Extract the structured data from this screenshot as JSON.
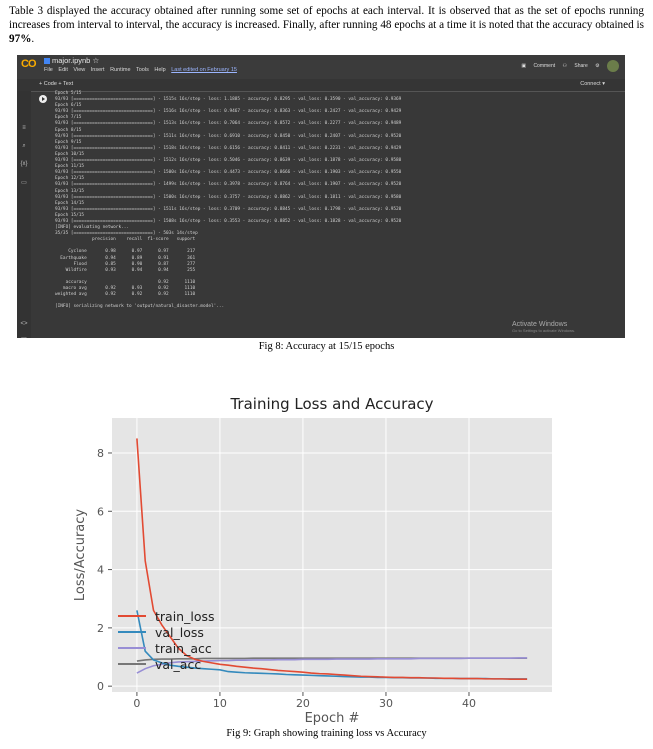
{
  "paragraph": {
    "text_before": "Table 3 displayed the accuracy obtained after running some set of epochs at each interval. It is observed that as the set of epochs running increases from interval to interval, the accuracy is increased. Finally, after running 48 epochs at a time it is noted that the accuracy obtained is ",
    "bold_value": "97%",
    "text_after": "."
  },
  "colab": {
    "logo": "CO",
    "file_name": "major.ipynb",
    "star": "☆",
    "menus": [
      "File",
      "Edit",
      "View",
      "Insert",
      "Runtime",
      "Tools",
      "Help"
    ],
    "last_edited": "Last edited on February 15",
    "comment": "Comment",
    "share": "Share",
    "toolbar_left": "+ Code  + Text",
    "toolbar_right": "Connect ▾",
    "watermark_title": "Activate Windows",
    "watermark_sub": "Go to Settings to activate Windows.",
    "output_lines": [
      "Epoch 5/15",
      "93/93 [==============================] - 1515s 16s/step - loss: 1.1885 - accuracy: 0.8295 - val_loss: 0.3590 - val_accuracy: 0.9369",
      "Epoch 6/15",
      "93/93 [==============================] - 1516s 16s/step - loss: 0.9467 - accuracy: 0.8363 - val_loss: 0.2427 - val_accuracy: 0.9429",
      "Epoch 7/15",
      "93/93 [==============================] - 1513s 16s/step - loss: 0.7064 - accuracy: 0.8572 - val_loss: 0.2277 - val_accuracy: 0.9489",
      "Epoch 8/15",
      "93/93 [==============================] - 1511s 16s/step - loss: 0.6910 - accuracy: 0.8450 - val_loss: 0.2407 - val_accuracy: 0.9520",
      "Epoch 9/15",
      "93/93 [==============================] - 1518s 16s/step - loss: 0.6156 - accuracy: 0.8411 - val_loss: 0.2231 - val_accuracy: 0.9429",
      "Epoch 10/15",
      "93/93 [==============================] - 1512s 16s/step - loss: 0.5046 - accuracy: 0.8639 - val_loss: 0.1878 - val_accuracy: 0.9580",
      "Epoch 11/15",
      "93/93 [==============================] - 1500s 16s/step - loss: 0.4473 - accuracy: 0.8666 - val_loss: 0.1903 - val_accuracy: 0.9550",
      "Epoch 12/15",
      "93/93 [==============================] - 1499s 16s/step - loss: 0.3978 - accuracy: 0.8764 - val_loss: 0.1907 - val_accuracy: 0.9520",
      "Epoch 13/15",
      "93/93 [==============================] - 1500s 16s/step - loss: 0.3757 - accuracy: 0.8862 - val_loss: 0.1811 - val_accuracy: 0.9580",
      "Epoch 14/15",
      "93/93 [==============================] - 1511s 16s/step - loss: 0.3709 - accuracy: 0.8845 - val_loss: 0.1798 - val_accuracy: 0.9520",
      "Epoch 15/15",
      "93/93 [==============================] - 1508s 16s/step - loss: 0.3553 - accuracy: 0.8852 - val_loss: 0.1828 - val_accuracy: 0.9520",
      "[INFO] evaluating network...",
      "35/35 [==============================] - 503s 14s/step",
      "              precision    recall  f1-score   support",
      "",
      "     Cyclone       0.98      0.97      0.97       217",
      "  Earthquake       0.94      0.89      0.91       361",
      "       Flood       0.85      0.90      0.87       277",
      "    Wildfire       0.93      0.94      0.94       255",
      "",
      "    accuracy                           0.92      1110",
      "   macro avg       0.92      0.93      0.92      1110",
      "weighted avg       0.92      0.92      0.92      1110",
      "",
      "[INFO] serializing network to 'output/natural_disaster.model'..."
    ]
  },
  "fig8_caption": "Fig 8: Accuracy at 15/15 epochs",
  "fig9_caption": "Fig 9: Graph showing training loss vs Accuracy",
  "colors": {
    "train_loss": "#e24a33",
    "val_loss": "#348abd",
    "train_acc": "#988ed5",
    "val_acc": "#777777",
    "plot_bg": "#e5e5e5"
  },
  "chart_data": {
    "type": "line",
    "title": "Training Loss and Accuracy",
    "xlabel": "Epoch #",
    "ylabel": "Loss/Accuracy",
    "xlim": [
      -3,
      50
    ],
    "ylim": [
      -0.2,
      9.2
    ],
    "xticks": [
      0,
      10,
      20,
      30,
      40
    ],
    "yticks": [
      0,
      2,
      4,
      6,
      8
    ],
    "grid": true,
    "legend_position": "lower-left",
    "x": [
      0,
      1,
      2,
      3,
      4,
      5,
      6,
      7,
      8,
      9,
      10,
      11,
      12,
      13,
      14,
      15,
      16,
      17,
      18,
      19,
      20,
      21,
      22,
      23,
      24,
      25,
      26,
      27,
      28,
      29,
      30,
      31,
      32,
      33,
      34,
      35,
      36,
      37,
      38,
      39,
      40,
      41,
      42,
      43,
      44,
      45,
      46,
      47
    ],
    "series": [
      {
        "name": "train_loss",
        "values": [
          8.5,
          4.3,
          2.6,
          2.1,
          1.7,
          1.3,
          1.05,
          0.92,
          0.85,
          0.8,
          0.75,
          0.72,
          0.68,
          0.65,
          0.62,
          0.6,
          0.57,
          0.54,
          0.52,
          0.5,
          0.48,
          0.45,
          0.43,
          0.42,
          0.4,
          0.38,
          0.36,
          0.34,
          0.33,
          0.32,
          0.31,
          0.3,
          0.3,
          0.29,
          0.29,
          0.28,
          0.28,
          0.27,
          0.27,
          0.26,
          0.26,
          0.26,
          0.25,
          0.25,
          0.25,
          0.24,
          0.24,
          0.24
        ]
      },
      {
        "name": "val_loss",
        "values": [
          2.6,
          1.2,
          0.9,
          0.8,
          0.72,
          0.68,
          0.65,
          0.62,
          0.6,
          0.58,
          0.56,
          0.5,
          0.48,
          0.46,
          0.45,
          0.44,
          0.43,
          0.42,
          0.4,
          0.39,
          0.38,
          0.37,
          0.36,
          0.35,
          0.34,
          0.33,
          0.32,
          0.31,
          0.31,
          0.3,
          0.3,
          0.29,
          0.29,
          0.28,
          0.28,
          0.28,
          0.27,
          0.27,
          0.27,
          0.26,
          0.26,
          0.26,
          0.26,
          0.25,
          0.25,
          0.25,
          0.25,
          0.25
        ]
      },
      {
        "name": "train_acc",
        "values": [
          0.45,
          0.6,
          0.7,
          0.75,
          0.8,
          0.83,
          0.84,
          0.85,
          0.86,
          0.87,
          0.88,
          0.88,
          0.89,
          0.89,
          0.9,
          0.9,
          0.9,
          0.91,
          0.91,
          0.91,
          0.92,
          0.92,
          0.92,
          0.92,
          0.93,
          0.93,
          0.93,
          0.93,
          0.93,
          0.94,
          0.94,
          0.94,
          0.94,
          0.94,
          0.95,
          0.95,
          0.95,
          0.95,
          0.95,
          0.95,
          0.96,
          0.96,
          0.96,
          0.96,
          0.96,
          0.96,
          0.97,
          0.97
        ]
      },
      {
        "name": "val_acc",
        "values": [
          0.86,
          0.9,
          0.92,
          0.93,
          0.93,
          0.94,
          0.94,
          0.94,
          0.95,
          0.95,
          0.95,
          0.95,
          0.95,
          0.95,
          0.96,
          0.96,
          0.96,
          0.96,
          0.96,
          0.96,
          0.96,
          0.96,
          0.96,
          0.96,
          0.96,
          0.96,
          0.96,
          0.96,
          0.96,
          0.96,
          0.96,
          0.96,
          0.96,
          0.96,
          0.96,
          0.96,
          0.96,
          0.96,
          0.96,
          0.96,
          0.96,
          0.96,
          0.96,
          0.96,
          0.96,
          0.96,
          0.96,
          0.96
        ]
      }
    ]
  }
}
